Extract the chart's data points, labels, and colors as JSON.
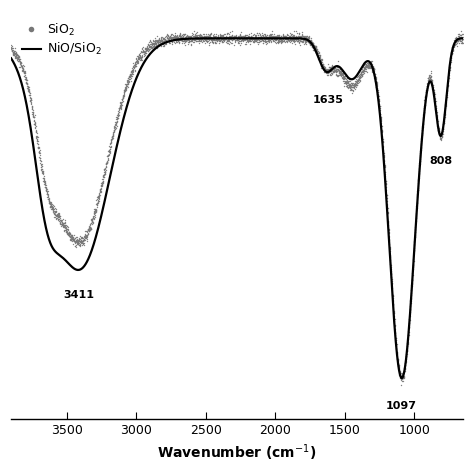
{
  "xmin": 3900,
  "xmax": 650,
  "xlabel": "Wavenumber (cm$^{-1}$)",
  "legend_sio2": "SiO$_2$",
  "legend_niosio2": "NiO/SiO$_2$",
  "xticks": [
    3500,
    3000,
    2500,
    2000,
    1500,
    1000
  ],
  "annotations": [
    {
      "text": "3411",
      "x": 3411,
      "yoffset": -0.06
    },
    {
      "text": "1635",
      "x": 1635,
      "yoffset": -0.09
    },
    {
      "text": "1097",
      "x": 1097,
      "yoffset": -0.09
    },
    {
      "text": "808",
      "x": 808,
      "yoffset": -0.07
    }
  ]
}
